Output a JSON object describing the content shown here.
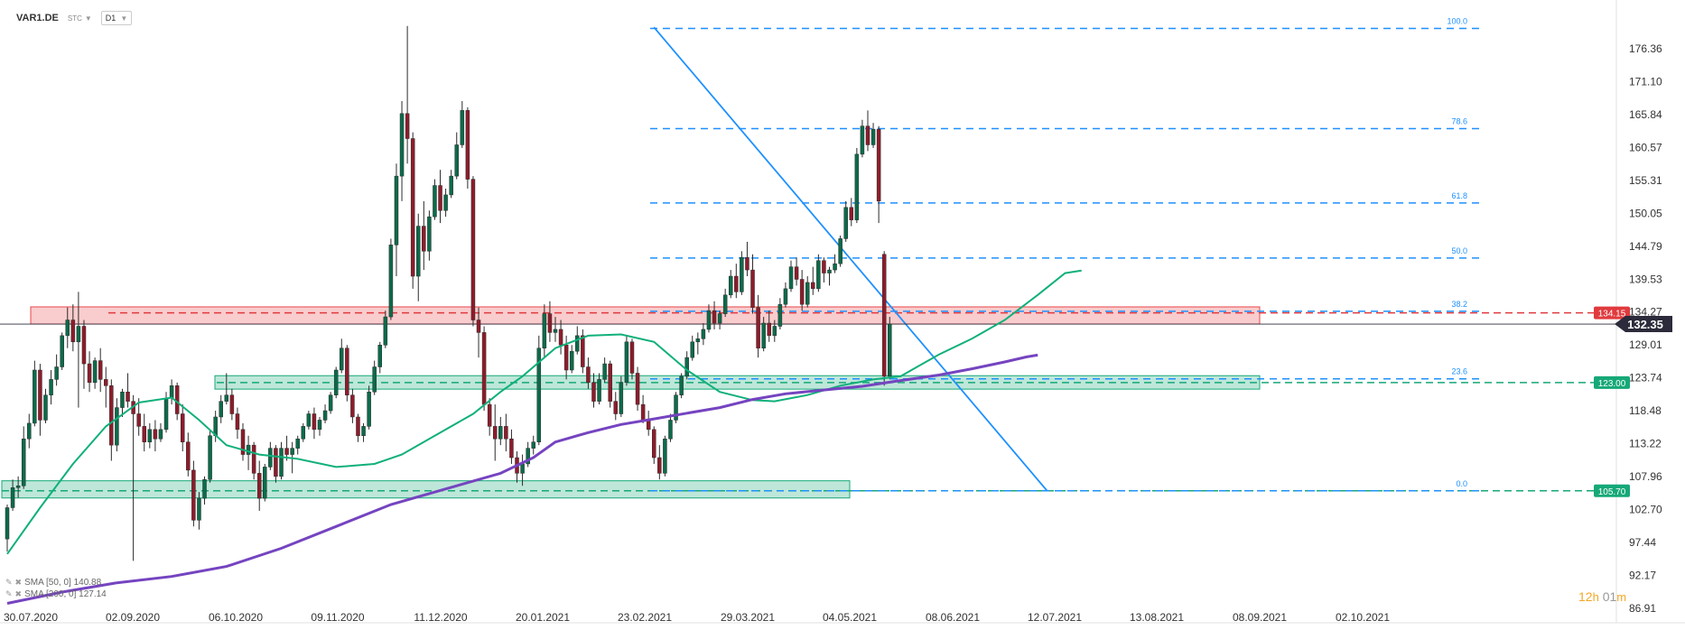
{
  "header": {
    "symbol": "VAR1.DE",
    "mode": "STC",
    "timeframe": "D1"
  },
  "legend": [
    {
      "label": "SMA [50, 0] 140.88",
      "color": "#10b07a"
    },
    {
      "label": "SMA [200, 0] 127.14",
      "color": "#7544c0"
    }
  ],
  "timer": {
    "hours": "12",
    "h_unit": "h",
    "minutes": "01",
    "m_unit": "m"
  },
  "chart_data": {
    "type": "candlestick",
    "title": "",
    "x_tick_labels": [
      "30.07.2020",
      "02.09.2020",
      "06.10.2020",
      "09.11.2020",
      "11.12.2020",
      "20.01.2021",
      "23.02.2021",
      "29.03.2021",
      "04.05.2021",
      "08.06.2021",
      "12.07.2021",
      "13.08.2021",
      "08.09.2021",
      "02.10.2021"
    ],
    "y_tick_labels": [
      "176.36",
      "171.10",
      "165.84",
      "160.57",
      "155.31",
      "150.05",
      "144.79",
      "139.53",
      "134.27",
      "129.01",
      "123.74",
      "118.48",
      "113.22",
      "107.96",
      "102.70",
      "97.44",
      "92.17",
      "86.91"
    ],
    "ylim": [
      86.91,
      176.36
    ],
    "last_price": {
      "label": "132.35",
      "value": 132.35,
      "color": "#2b2b3b"
    },
    "price_levels": [
      {
        "label": "134.15",
        "value": 134.15,
        "color": "#e03a3e"
      },
      {
        "label": "123.00",
        "value": 123.0,
        "color": "#16a878"
      },
      {
        "label": "105.70",
        "value": 105.7,
        "color": "#16a878"
      }
    ],
    "zones": [
      {
        "from": 132.35,
        "to": 135.1,
        "color": "#e8474c",
        "start": "30.07.2020",
        "end": "08.09.2021"
      },
      {
        "from": 121.95,
        "to": 124.1,
        "color": "#16a878",
        "start": "24.09.2020",
        "end": "08.09.2021"
      },
      {
        "from": 104.55,
        "to": 107.3,
        "color": "#16a878",
        "start": "15.07.2020",
        "end": "04.05.2021"
      }
    ],
    "fibonacci": [
      {
        "label": "100.0",
        "value": 179.6
      },
      {
        "label": "78.6",
        "value": 163.6
      },
      {
        "label": "61.8",
        "value": 151.7
      },
      {
        "label": "50.0",
        "value": 142.9
      },
      {
        "label": "38.2",
        "value": 134.4
      },
      {
        "label": "23.6",
        "value": 123.6
      },
      {
        "label": "0.0",
        "value": 105.7
      }
    ],
    "trendline": {
      "from": [
        31,
        179.8
      ],
      "to": [
        151,
        105.7
      ]
    },
    "sma50": [
      [
        0,
        95.6
      ],
      [
        6,
        103
      ],
      [
        12,
        110
      ],
      [
        18,
        116
      ],
      [
        24,
        119.8
      ],
      [
        30,
        120.6
      ],
      [
        35,
        117
      ],
      [
        40,
        113
      ],
      [
        46,
        111.5
      ],
      [
        53,
        110.8
      ],
      [
        60,
        109.5
      ],
      [
        67,
        110
      ],
      [
        72,
        111.5
      ],
      [
        78,
        114.5
      ],
      [
        85,
        118
      ],
      [
        90,
        121.5
      ],
      [
        94,
        124
      ],
      [
        100,
        128.5
      ],
      [
        106,
        130.5
      ],
      [
        112,
        130.7
      ],
      [
        118,
        129.5
      ],
      [
        124,
        125
      ],
      [
        130,
        121.5
      ],
      [
        136,
        120.2
      ],
      [
        140,
        120
      ],
      [
        146,
        121
      ],
      [
        152,
        122.5
      ],
      [
        158,
        123.5
      ],
      [
        163,
        124
      ],
      [
        166,
        125.5
      ],
      [
        170,
        127.5
      ],
      [
        176,
        130
      ],
      [
        182,
        133
      ],
      [
        188,
        137
      ],
      [
        193,
        140.5
      ],
      [
        196,
        140.9
      ]
    ],
    "sma200": [
      [
        0,
        87.7
      ],
      [
        10,
        89.5
      ],
      [
        20,
        91
      ],
      [
        30,
        92
      ],
      [
        40,
        93.6
      ],
      [
        50,
        96.5
      ],
      [
        60,
        100
      ],
      [
        70,
        103.5
      ],
      [
        80,
        106
      ],
      [
        90,
        108.5
      ],
      [
        96,
        111
      ],
      [
        100,
        113.5
      ],
      [
        106,
        115
      ],
      [
        112,
        116.3
      ],
      [
        118,
        117.2
      ],
      [
        124,
        118.1
      ],
      [
        130,
        119
      ],
      [
        136,
        120.3
      ],
      [
        142,
        121.2
      ],
      [
        150,
        121.9
      ],
      [
        156,
        122.4
      ],
      [
        162,
        123.2
      ],
      [
        170,
        124.2
      ],
      [
        176,
        125.2
      ],
      [
        182,
        126.3
      ],
      [
        186,
        127.1
      ],
      [
        188,
        127.4
      ]
    ],
    "candles": [
      [
        98.0,
        103.5,
        96.0,
        103.0
      ],
      [
        103.0,
        107.5,
        102.5,
        106.2
      ],
      [
        106.2,
        108.0,
        104.6,
        106.5
      ],
      [
        106.5,
        116.0,
        106.0,
        114.0
      ],
      [
        114.0,
        118.0,
        112.5,
        116.5
      ],
      [
        116.5,
        126.5,
        116.0,
        125.0
      ],
      [
        125.0,
        126.0,
        114.5,
        117.0
      ],
      [
        117.0,
        122.0,
        116.5,
        121.0
      ],
      [
        121.0,
        125.0,
        119.5,
        123.5
      ],
      [
        123.5,
        127.5,
        122.5,
        125.5
      ],
      [
        125.5,
        131.0,
        125.0,
        130.5
      ],
      [
        130.5,
        135.0,
        128.5,
        133.0
      ],
      [
        133.0,
        135.5,
        128.0,
        129.5
      ],
      [
        129.5,
        137.5,
        119.0,
        132.0
      ],
      [
        132.0,
        133.0,
        122.0,
        126.0
      ],
      [
        126.0,
        128.0,
        121.5,
        123.0
      ],
      [
        123.0,
        127.0,
        122.0,
        126.5
      ],
      [
        126.5,
        128.5,
        121.5,
        123.5
      ],
      [
        123.5,
        125.5,
        119.0,
        122.5
      ],
      [
        122.5,
        123.5,
        110.5,
        113.0
      ],
      [
        113.0,
        120.5,
        112.0,
        119.0
      ],
      [
        119.0,
        122.0,
        117.5,
        121.5
      ],
      [
        121.5,
        124.5,
        119.0,
        120.0
      ],
      [
        120.0,
        121.0,
        94.5,
        118.0
      ],
      [
        118.0,
        120.5,
        114.5,
        116.0
      ],
      [
        116.0,
        118.0,
        112.0,
        113.5
      ],
      [
        113.5,
        116.5,
        112.5,
        115.5
      ],
      [
        115.5,
        117.0,
        112.0,
        114.0
      ],
      [
        114.0,
        116.5,
        113.5,
        115.5
      ],
      [
        115.5,
        121.5,
        115.0,
        120.5
      ],
      [
        120.5,
        123.5,
        119.5,
        122.5
      ],
      [
        122.5,
        123.0,
        117.0,
        118.0
      ],
      [
        118.0,
        119.5,
        112.0,
        113.5
      ],
      [
        113.5,
        115.0,
        108.0,
        109.0
      ],
      [
        109.0,
        110.5,
        100.0,
        101.0
      ],
      [
        101.0,
        105.5,
        99.5,
        104.5
      ],
      [
        104.5,
        108.0,
        103.5,
        107.5
      ],
      [
        107.5,
        115.5,
        107.0,
        114.5
      ],
      [
        114.5,
        118.5,
        113.5,
        117.5
      ],
      [
        117.5,
        121.0,
        116.5,
        120.0
      ],
      [
        120.0,
        124.5,
        119.5,
        121.0
      ],
      [
        121.0,
        122.0,
        117.0,
        118.0
      ],
      [
        118.0,
        119.0,
        114.0,
        115.5
      ],
      [
        115.5,
        116.5,
        110.5,
        111.5
      ],
      [
        111.5,
        114.5,
        109.0,
        113.0
      ],
      [
        113.0,
        113.5,
        107.5,
        108.5
      ],
      [
        108.5,
        110.5,
        102.5,
        104.5
      ],
      [
        104.5,
        110.0,
        104.0,
        109.5
      ],
      [
        109.5,
        113.5,
        109.0,
        112.5
      ],
      [
        112.5,
        113.0,
        107.0,
        108.0
      ],
      [
        108.0,
        113.5,
        107.5,
        112.5
      ],
      [
        112.5,
        114.5,
        110.5,
        111.5
      ],
      [
        111.5,
        113.5,
        108.5,
        112.5
      ],
      [
        112.5,
        114.5,
        111.5,
        114.0
      ],
      [
        114.0,
        116.5,
        113.5,
        116.0
      ],
      [
        116.0,
        118.5,
        115.5,
        118.0
      ],
      [
        118.0,
        119.0,
        114.0,
        115.5
      ],
      [
        115.5,
        117.5,
        114.5,
        117.0
      ],
      [
        117.0,
        119.5,
        116.5,
        118.5
      ],
      [
        118.5,
        121.5,
        118.0,
        121.0
      ],
      [
        121.0,
        125.5,
        120.5,
        125.0
      ],
      [
        125.0,
        130.0,
        124.5,
        128.5
      ],
      [
        128.5,
        129.0,
        120.0,
        121.0
      ],
      [
        121.0,
        122.0,
        116.5,
        117.5
      ],
      [
        117.5,
        118.0,
        113.5,
        114.5
      ],
      [
        114.5,
        116.5,
        113.5,
        116.0
      ],
      [
        116.0,
        122.5,
        115.5,
        121.5
      ],
      [
        121.5,
        126.5,
        121.0,
        125.5
      ],
      [
        125.5,
        129.5,
        124.5,
        129.0
      ],
      [
        129.0,
        134.5,
        128.5,
        133.5
      ],
      [
        133.5,
        146.0,
        133.0,
        145.0
      ],
      [
        145.0,
        158.0,
        140.0,
        156.0
      ],
      [
        156.0,
        168.0,
        152.0,
        166.0
      ],
      [
        166.0,
        180.0,
        158.0,
        162.0
      ],
      [
        162.0,
        163.0,
        138.0,
        140.0
      ],
      [
        140.0,
        150.0,
        136.0,
        148.0
      ],
      [
        148.0,
        152.0,
        141.0,
        144.0
      ],
      [
        144.0,
        150.5,
        142.5,
        149.5
      ],
      [
        149.5,
        155.5,
        149.0,
        154.5
      ],
      [
        154.5,
        157.0,
        148.5,
        150.5
      ],
      [
        150.5,
        154.0,
        149.5,
        153.0
      ],
      [
        153.0,
        157.0,
        152.5,
        156.0
      ],
      [
        156.0,
        163.0,
        155.5,
        161.0
      ],
      [
        161.0,
        168.0,
        160.5,
        166.5
      ],
      [
        166.5,
        167.0,
        154.0,
        155.5
      ],
      [
        155.5,
        156.0,
        132.0,
        133.0
      ],
      [
        133.0,
        135.0,
        127.0,
        131.0
      ],
      [
        131.0,
        132.0,
        118.5,
        119.5
      ],
      [
        119.5,
        120.5,
        114.5,
        116.0
      ],
      [
        116.0,
        119.5,
        110.5,
        114.0
      ],
      [
        114.0,
        117.5,
        113.0,
        116.0
      ],
      [
        116.0,
        118.0,
        112.0,
        114.0
      ],
      [
        114.0,
        115.5,
        110.0,
        111.0
      ],
      [
        111.0,
        112.0,
        107.0,
        108.5
      ],
      [
        108.5,
        111.5,
        106.5,
        110.0
      ],
      [
        110.0,
        113.5,
        109.5,
        112.5
      ],
      [
        112.5,
        114.5,
        111.5,
        113.5
      ],
      [
        113.5,
        130.5,
        113.0,
        128.5
      ],
      [
        128.5,
        135.5,
        127.0,
        134.0
      ],
      [
        134.0,
        136.0,
        129.5,
        131.0
      ],
      [
        131.0,
        133.5,
        129.5,
        131.5
      ],
      [
        131.5,
        133.0,
        127.5,
        129.0
      ],
      [
        129.0,
        130.5,
        123.5,
        125.0
      ],
      [
        125.0,
        129.0,
        124.5,
        128.0
      ],
      [
        128.0,
        132.0,
        127.5,
        130.5
      ],
      [
        130.5,
        131.5,
        124.5,
        125.5
      ],
      [
        125.5,
        127.0,
        122.0,
        123.0
      ],
      [
        123.0,
        124.5,
        119.0,
        120.0
      ],
      [
        120.0,
        124.5,
        119.5,
        123.5
      ],
      [
        123.5,
        127.0,
        123.0,
        126.0
      ],
      [
        126.0,
        126.5,
        119.0,
        120.0
      ],
      [
        120.0,
        121.5,
        117.0,
        118.0
      ],
      [
        118.0,
        124.0,
        117.5,
        123.0
      ],
      [
        123.0,
        130.5,
        122.5,
        129.5
      ],
      [
        129.5,
        130.0,
        123.5,
        124.5
      ],
      [
        124.5,
        125.5,
        118.5,
        119.5
      ],
      [
        119.5,
        121.0,
        116.5,
        117.0
      ],
      [
        117.0,
        118.5,
        114.5,
        115.5
      ],
      [
        115.5,
        116.0,
        110.0,
        111.0
      ],
      [
        111.0,
        113.0,
        107.5,
        108.5
      ],
      [
        108.5,
        114.5,
        108.0,
        114.0
      ],
      [
        114.0,
        118.0,
        113.5,
        117.0
      ],
      [
        117.0,
        121.5,
        116.5,
        121.0
      ],
      [
        121.0,
        124.5,
        120.5,
        124.0
      ],
      [
        124.0,
        128.0,
        123.5,
        127.0
      ],
      [
        127.0,
        130.5,
        126.5,
        129.5
      ],
      [
        129.5,
        131.0,
        127.5,
        130.0
      ],
      [
        130.0,
        132.5,
        129.0,
        131.5
      ],
      [
        131.5,
        135.5,
        131.0,
        134.5
      ],
      [
        134.5,
        136.0,
        131.5,
        132.5
      ],
      [
        132.5,
        134.5,
        131.5,
        134.0
      ],
      [
        134.0,
        138.0,
        133.5,
        137.0
      ],
      [
        137.0,
        141.0,
        136.5,
        140.0
      ],
      [
        140.0,
        142.0,
        136.5,
        137.5
      ],
      [
        137.5,
        144.0,
        137.0,
        143.0
      ],
      [
        143.0,
        145.5,
        140.0,
        141.0
      ],
      [
        141.0,
        143.5,
        134.0,
        135.0
      ],
      [
        135.0,
        137.0,
        127.0,
        128.5
      ],
      [
        128.5,
        133.5,
        128.0,
        132.5
      ],
      [
        132.5,
        134.5,
        129.5,
        130.5
      ],
      [
        130.5,
        133.0,
        129.5,
        132.0
      ],
      [
        132.0,
        136.5,
        131.5,
        135.5
      ],
      [
        135.5,
        139.0,
        135.0,
        138.0
      ],
      [
        138.0,
        142.5,
        137.5,
        141.5
      ],
      [
        141.5,
        143.0,
        138.5,
        139.5
      ],
      [
        139.5,
        141.0,
        134.5,
        135.5
      ],
      [
        135.5,
        140.0,
        135.0,
        139.0
      ],
      [
        139.0,
        141.5,
        137.0,
        138.0
      ],
      [
        138.0,
        143.5,
        137.5,
        142.5
      ],
      [
        142.5,
        143.0,
        139.0,
        140.5
      ],
      [
        140.5,
        141.5,
        138.5,
        141.0
      ],
      [
        141.0,
        143.5,
        140.5,
        142.0
      ],
      [
        142.0,
        146.5,
        141.5,
        146.0
      ],
      [
        146.0,
        152.0,
        145.5,
        151.0
      ],
      [
        151.0,
        152.5,
        148.0,
        149.0
      ],
      [
        149.0,
        160.5,
        148.5,
        159.5
      ],
      [
        159.5,
        165.0,
        159.0,
        164.0
      ],
      [
        164.0,
        166.5,
        160.0,
        161.0
      ],
      [
        161.0,
        164.5,
        160.5,
        163.5
      ],
      [
        163.5,
        164.0,
        148.5,
        152.0
      ],
      [
        143.5,
        144.0,
        122.5,
        124.0
      ],
      [
        124.0,
        133.5,
        123.5,
        132.35
      ]
    ],
    "candle_dates_note": "",
    "up_color": "#0c6b4a",
    "down_color": "#8e1c2b"
  }
}
